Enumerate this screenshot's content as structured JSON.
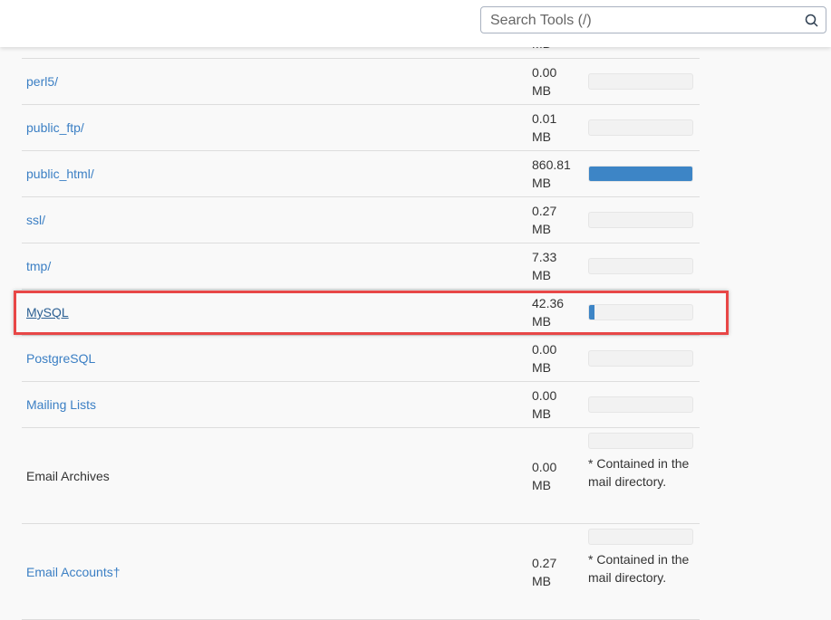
{
  "search": {
    "placeholder": "Search Tools (/)",
    "icon": "search-icon"
  },
  "partial_row": {
    "size": "MB"
  },
  "rows": [
    {
      "name": "perl5/",
      "size": "0.00",
      "unit": "MB",
      "percent": 0,
      "link": true
    },
    {
      "name": "public_ftp/",
      "size": "0.01",
      "unit": "MB",
      "percent": 0,
      "link": true
    },
    {
      "name": "public_html/",
      "size": "860.81",
      "unit": "MB",
      "percent": 100,
      "link": true
    },
    {
      "name": "ssl/",
      "size": "0.27",
      "unit": "MB",
      "percent": 0,
      "link": true
    },
    {
      "name": "tmp/",
      "size": "7.33",
      "unit": "MB",
      "percent": 0,
      "link": true
    },
    {
      "name": "MySQL",
      "size": "42.36",
      "unit": "MB",
      "percent": 5,
      "link": true,
      "highlighted": true
    },
    {
      "name": "PostgreSQL",
      "size": "0.00",
      "unit": "MB",
      "percent": 0,
      "link": true
    },
    {
      "name": "Mailing Lists",
      "size": "0.00",
      "unit": "MB",
      "percent": 0,
      "link": true
    },
    {
      "name": "Email Archives",
      "size": "0.00",
      "unit": "MB",
      "percent": 0,
      "link": false,
      "note": "* Contained in the mail directory."
    },
    {
      "name": "Email Accounts†",
      "size": "0.27",
      "unit": "MB",
      "percent": 0,
      "link": true,
      "note": "* Contained in the mail directory."
    }
  ],
  "colors": {
    "link": "#3b7fc4",
    "bar": "#3d85c6",
    "highlight": "#e84747"
  }
}
